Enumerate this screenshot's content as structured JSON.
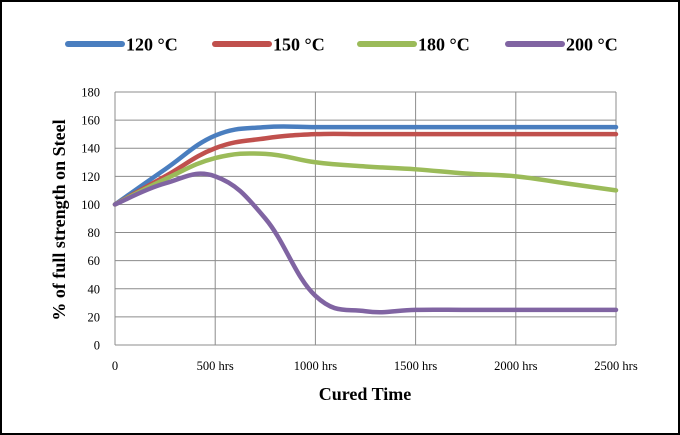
{
  "chart_data": {
    "type": "line",
    "title": "",
    "xlabel": "Cured Time",
    "ylabel": "% of full strength on Steel",
    "x": [
      0,
      250,
      500,
      750,
      1000,
      1250,
      1500,
      1750,
      2000,
      2250,
      2500
    ],
    "x_tick_labels": [
      "0",
      "500 hrs",
      "1000 hrs",
      "1500 hrs",
      "2000 hrs",
      "2500 hrs"
    ],
    "y_tick_labels": [
      "0",
      "20",
      "40",
      "60",
      "80",
      "100",
      "120",
      "140",
      "160",
      "180"
    ],
    "xlim": [
      0,
      2500
    ],
    "ylim": [
      0,
      180
    ],
    "grid": true,
    "legend_position": "top",
    "series": [
      {
        "name": "120 °C",
        "color": "#4a7ebf",
        "values": [
          100,
          125,
          149,
          155,
          155,
          155,
          155,
          155,
          155,
          155,
          155
        ]
      },
      {
        "name": "150 °C",
        "color": "#c0504d",
        "values": [
          100,
          120,
          140,
          147,
          150,
          150,
          150,
          150,
          150,
          150,
          150
        ]
      },
      {
        "name": "180 °C",
        "color": "#9bbb59",
        "values": [
          100,
          118,
          133,
          136,
          130,
          127,
          125,
          122,
          120,
          115,
          110
        ]
      },
      {
        "name": "200 °C",
        "color": "#8064a2",
        "values": [
          100,
          115,
          120,
          90,
          35,
          24,
          25,
          25,
          25,
          25,
          25
        ]
      }
    ]
  }
}
